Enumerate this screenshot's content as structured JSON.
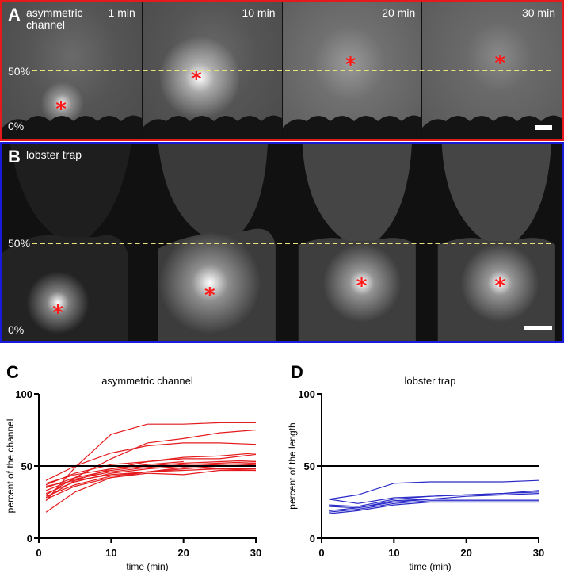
{
  "panelA": {
    "letter": "A",
    "title": "asymmetric channel",
    "title_line1": "asymmetric",
    "title_line2": "channel",
    "frame_color": "#e41a1c",
    "label_50": "50%",
    "label_0": "0%",
    "times": [
      "1 min",
      "10 min",
      "20 min",
      "30 min"
    ],
    "marker": "*"
  },
  "panelB": {
    "letter": "B",
    "title": "lobster trap",
    "frame_color": "#1a1adb",
    "label_50": "50%",
    "label_0": "0%",
    "marker": "*"
  },
  "chart_data": [
    {
      "panel": "C",
      "type": "line",
      "title": "asymmetric channel",
      "xlabel": "time (min)",
      "ylabel": "percent of the channel",
      "xlim": [
        0,
        30
      ],
      "ylim": [
        0,
        100
      ],
      "xticks": [
        0,
        10,
        20,
        30
      ],
      "yticks": [
        0,
        50,
        100
      ],
      "reference_line": 50,
      "color": "#e41a1c",
      "x": [
        1,
        5,
        10,
        15,
        20,
        25,
        30
      ],
      "series": [
        {
          "name": "c1",
          "values": [
            26,
            49,
            72,
            79,
            79,
            80,
            80
          ]
        },
        {
          "name": "c2",
          "values": [
            30,
            42,
            55,
            66,
            69,
            73,
            75
          ]
        },
        {
          "name": "c3",
          "values": [
            40,
            50,
            59,
            64,
            66,
            66,
            65
          ]
        },
        {
          "name": "c4",
          "values": [
            37,
            45,
            51,
            53,
            56,
            57,
            59
          ]
        },
        {
          "name": "c5",
          "values": [
            28,
            40,
            48,
            53,
            55,
            55,
            58
          ]
        },
        {
          "name": "c6",
          "values": [
            38,
            44,
            48,
            51,
            53,
            null,
            null
          ]
        },
        {
          "name": "c7",
          "values": [
            35,
            42,
            47,
            50,
            52,
            53,
            54
          ]
        },
        {
          "name": "c8",
          "values": [
            33,
            41,
            46,
            49,
            51,
            52,
            53
          ]
        },
        {
          "name": "c9",
          "values": [
            31,
            39,
            45,
            48,
            50,
            51,
            52
          ]
        },
        {
          "name": "c10",
          "values": [
            36,
            40,
            44,
            46,
            48,
            50,
            51
          ]
        },
        {
          "name": "c11",
          "values": [
            29,
            37,
            43,
            46,
            47,
            48,
            48
          ]
        },
        {
          "name": "c12",
          "values": [
            27,
            36,
            42,
            45,
            44,
            47,
            47
          ]
        },
        {
          "name": "c13",
          "values": [
            18,
            32,
            42,
            46,
            49,
            48,
            47
          ]
        }
      ]
    },
    {
      "panel": "D",
      "type": "line",
      "title": "lobster trap",
      "xlabel": "time (min)",
      "ylabel": "percent of the length",
      "xlim": [
        0,
        30
      ],
      "ylim": [
        0,
        100
      ],
      "xticks": [
        0,
        10,
        20,
        30
      ],
      "yticks": [
        0,
        50,
        100
      ],
      "reference_line": 50,
      "color": "#2a2ac8",
      "x": [
        1,
        5,
        10,
        15,
        20,
        25,
        30
      ],
      "series": [
        {
          "name": "d1",
          "values": [
            27,
            30,
            38,
            39,
            39,
            39,
            40
          ]
        },
        {
          "name": "d2",
          "values": [
            27,
            24,
            28,
            29,
            30,
            31,
            33
          ]
        },
        {
          "name": "d3",
          "values": [
            23,
            22,
            27,
            29,
            30,
            31,
            32
          ]
        },
        {
          "name": "d4",
          "values": [
            22,
            21,
            26,
            27,
            29,
            30,
            31
          ]
        },
        {
          "name": "d5",
          "values": [
            19,
            21,
            25,
            27,
            27,
            27,
            27
          ]
        },
        {
          "name": "d6",
          "values": [
            18,
            20,
            24,
            26,
            26,
            26,
            26
          ]
        },
        {
          "name": "d7",
          "values": [
            17,
            19,
            23,
            25,
            25,
            25,
            25
          ]
        }
      ]
    }
  ]
}
